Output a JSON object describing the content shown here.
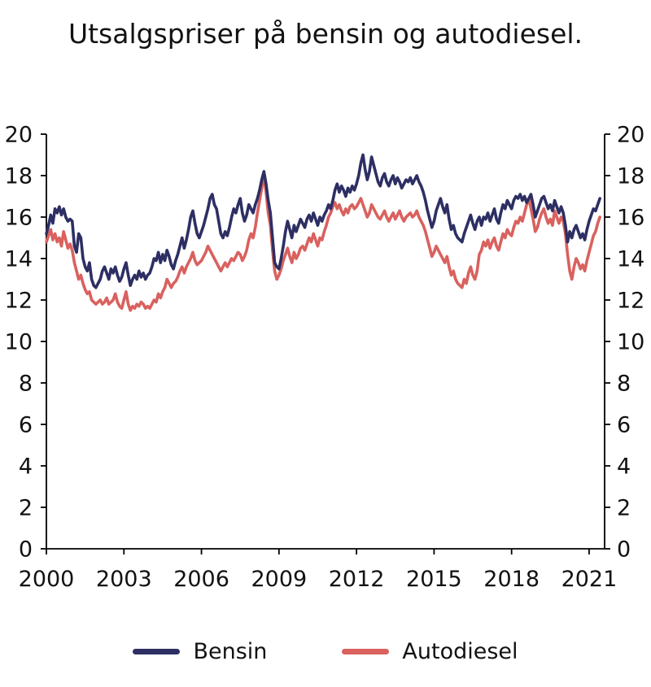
{
  "chart_data": {
    "type": "line",
    "title": "Utsalgspriser på bensin og autodiesel.",
    "xlabel": "",
    "ylabel": "",
    "xlim": [
      2000,
      2021.6
    ],
    "ylim": [
      0,
      20
    ],
    "x_ticks": [
      2000,
      2003,
      2006,
      2009,
      2012,
      2015,
      2018,
      2021
    ],
    "y_ticks": [
      0,
      2,
      4,
      6,
      8,
      10,
      12,
      14,
      16,
      18,
      20
    ],
    "grid": false,
    "legend_position": "bottom",
    "x_unit": "year, monthly observations starting January 2000",
    "axis_color": "#000000",
    "series": [
      {
        "name": "Bensin",
        "color": "#2d2f63",
        "monthly_values": [
          15.2,
          15.6,
          16.1,
          15.7,
          16.4,
          16.2,
          16.5,
          16.1,
          16.4,
          16.0,
          15.8,
          15.9,
          15.8,
          14.6,
          14.3,
          15.2,
          15.0,
          14.0,
          13.6,
          13.4,
          13.8,
          13.0,
          12.7,
          12.6,
          12.8,
          13.0,
          13.4,
          13.6,
          13.3,
          13.0,
          13.5,
          13.3,
          13.6,
          13.2,
          12.9,
          13.1,
          13.5,
          13.8,
          13.2,
          12.7,
          13.0,
          13.2,
          13.0,
          13.4,
          13.1,
          13.3,
          13.0,
          13.2,
          13.3,
          13.6,
          14.0,
          13.9,
          14.3,
          13.8,
          14.2,
          13.9,
          14.4,
          14.1,
          13.7,
          13.5,
          13.9,
          14.2,
          14.6,
          15.0,
          14.5,
          14.9,
          15.4,
          16.0,
          16.3,
          15.7,
          15.2,
          15.0,
          15.3,
          15.6,
          16.0,
          16.4,
          16.9,
          17.1,
          16.6,
          16.4,
          15.8,
          15.2,
          15.0,
          15.3,
          15.1,
          15.5,
          16.0,
          16.4,
          16.2,
          16.6,
          16.9,
          16.2,
          15.8,
          16.1,
          16.6,
          16.4,
          16.2,
          16.6,
          16.9,
          17.3,
          17.8,
          18.2,
          17.6,
          16.8,
          16.2,
          15.0,
          13.8,
          13.6,
          13.5,
          14.0,
          14.6,
          15.3,
          15.8,
          15.4,
          15.0,
          15.6,
          15.3,
          15.6,
          15.9,
          15.7,
          15.5,
          15.9,
          16.1,
          15.8,
          16.2,
          15.9,
          15.6,
          16.0,
          15.8,
          16.1,
          16.3,
          16.6,
          16.4,
          16.8,
          17.3,
          17.6,
          17.2,
          17.5,
          17.3,
          17.0,
          17.4,
          17.2,
          17.5,
          17.3,
          17.6,
          18.0,
          18.6,
          19.0,
          18.3,
          17.8,
          18.2,
          18.9,
          18.5,
          18.1,
          17.7,
          17.5,
          17.9,
          18.1,
          17.7,
          17.5,
          17.8,
          18.0,
          17.6,
          17.9,
          17.7,
          17.4,
          17.6,
          17.8,
          17.7,
          17.9,
          17.6,
          17.8,
          18.0,
          17.7,
          17.5,
          17.2,
          16.8,
          16.3,
          15.9,
          15.5,
          15.8,
          16.3,
          16.6,
          16.9,
          16.5,
          16.2,
          16.6,
          15.9,
          15.4,
          15.6,
          15.2,
          15.0,
          14.9,
          14.8,
          15.2,
          15.5,
          15.8,
          16.1,
          15.7,
          15.4,
          15.8,
          16.0,
          15.6,
          16.0,
          15.9,
          16.2,
          15.8,
          16.1,
          16.4,
          15.9,
          15.7,
          16.2,
          16.6,
          16.4,
          16.8,
          16.6,
          16.4,
          16.8,
          17.0,
          16.9,
          17.1,
          16.8,
          17.0,
          16.7,
          16.9,
          17.1,
          16.6,
          16.0,
          16.3,
          16.6,
          16.9,
          17.0,
          16.7,
          16.4,
          16.6,
          16.3,
          16.8,
          16.5,
          16.2,
          16.5,
          16.2,
          15.6,
          14.8,
          15.3,
          15.0,
          15.4,
          15.6,
          15.3,
          15.0,
          15.2,
          14.9,
          15.4,
          15.8,
          16.1,
          16.4,
          16.3,
          16.6,
          16.9
        ]
      },
      {
        "name": "Autodiesel",
        "color": "#d9615e",
        "monthly_values": [
          14.8,
          15.1,
          15.4,
          14.9,
          15.2,
          14.8,
          15.0,
          14.6,
          15.3,
          14.9,
          14.5,
          14.7,
          14.4,
          13.8,
          13.4,
          13.0,
          13.2,
          12.8,
          12.5,
          12.3,
          12.4,
          12.0,
          11.9,
          11.8,
          11.9,
          12.0,
          11.8,
          11.9,
          12.1,
          11.8,
          11.9,
          12.0,
          12.3,
          11.9,
          11.7,
          11.6,
          12.0,
          12.4,
          11.8,
          11.5,
          11.7,
          11.6,
          11.8,
          11.7,
          11.9,
          11.8,
          11.6,
          11.7,
          11.6,
          11.8,
          12.0,
          11.9,
          12.3,
          12.1,
          12.4,
          12.6,
          13.0,
          12.8,
          12.6,
          12.8,
          12.9,
          13.1,
          13.4,
          13.6,
          13.3,
          13.6,
          13.8,
          14.0,
          14.3,
          13.9,
          13.7,
          13.8,
          13.9,
          14.1,
          14.3,
          14.6,
          14.4,
          14.2,
          14.0,
          13.8,
          13.6,
          13.4,
          13.6,
          13.8,
          13.6,
          13.8,
          14.0,
          13.9,
          14.1,
          14.3,
          14.2,
          13.9,
          14.1,
          14.4,
          14.9,
          15.2,
          15.0,
          15.5,
          16.2,
          16.8,
          17.4,
          18.0,
          17.2,
          16.2,
          15.6,
          14.4,
          13.4,
          13.0,
          13.2,
          13.5,
          13.9,
          14.2,
          14.5,
          14.1,
          13.8,
          14.3,
          14.0,
          14.2,
          14.5,
          14.6,
          14.4,
          14.7,
          15.0,
          14.8,
          15.2,
          14.9,
          14.6,
          15.0,
          14.9,
          15.3,
          15.6,
          16.0,
          16.2,
          16.5,
          16.7,
          16.4,
          16.6,
          16.3,
          16.1,
          16.4,
          16.2,
          16.5,
          16.6,
          16.4,
          16.5,
          16.7,
          16.9,
          16.6,
          16.3,
          16.0,
          16.2,
          16.6,
          16.4,
          16.2,
          16.0,
          15.9,
          16.1,
          16.3,
          16.0,
          15.8,
          16.0,
          16.2,
          15.9,
          16.1,
          16.3,
          16.0,
          15.8,
          16.0,
          16.1,
          16.2,
          16.0,
          16.1,
          16.3,
          16.0,
          15.8,
          15.6,
          15.3,
          14.9,
          14.5,
          14.1,
          14.3,
          14.6,
          14.4,
          14.2,
          14.0,
          13.8,
          14.1,
          13.6,
          13.2,
          13.4,
          13.0,
          12.8,
          12.7,
          12.6,
          13.0,
          12.8,
          13.3,
          13.6,
          13.2,
          13.0,
          13.4,
          14.2,
          14.4,
          14.8,
          14.6,
          14.9,
          14.5,
          14.8,
          15.0,
          14.6,
          14.4,
          14.8,
          15.2,
          15.0,
          15.4,
          15.2,
          15.1,
          15.5,
          15.8,
          15.7,
          16.0,
          15.8,
          16.2,
          16.6,
          16.9,
          16.4,
          15.9,
          15.3,
          15.5,
          15.9,
          16.2,
          16.4,
          16.0,
          15.7,
          15.9,
          15.6,
          16.3,
          16.0,
          15.7,
          16.0,
          15.8,
          15.2,
          14.2,
          13.4,
          13.0,
          13.6,
          14.0,
          13.8,
          13.5,
          13.7,
          13.4,
          13.9,
          14.3,
          14.7,
          15.1,
          15.3,
          15.7,
          16.0
        ]
      }
    ]
  }
}
